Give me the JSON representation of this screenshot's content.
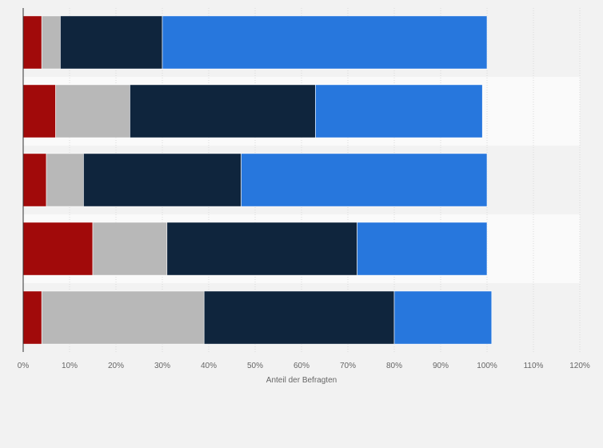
{
  "chart_data": {
    "type": "bar",
    "orientation": "horizontal",
    "stacked": true,
    "xlabel": "Anteil der Befragten",
    "xlim": [
      0,
      120
    ],
    "x_ticks": [
      "0%",
      "10%",
      "20%",
      "30%",
      "40%",
      "50%",
      "60%",
      "70%",
      "80%",
      "90%",
      "100%",
      "110%",
      "120%"
    ],
    "categories": [
      "",
      "",
      "",
      "",
      ""
    ],
    "series": [
      {
        "color": "#a10a0a",
        "values": [
          4,
          7,
          5,
          15,
          4
        ]
      },
      {
        "color": "#b8b8b8",
        "values": [
          4,
          16,
          8,
          16,
          35
        ]
      },
      {
        "color": "#0f253d",
        "values": [
          22,
          40,
          34,
          41,
          41
        ]
      },
      {
        "color": "#2777dd",
        "values": [
          70,
          36,
          53,
          28,
          21
        ]
      }
    ],
    "grid": true,
    "legend": "none",
    "band_colors": [
      "#f2f2f2",
      "#fafafa"
    ]
  }
}
